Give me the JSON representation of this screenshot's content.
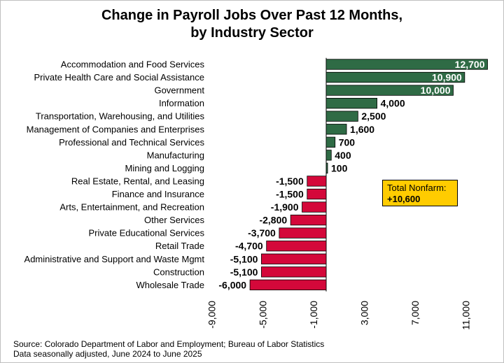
{
  "chart_data": {
    "type": "bar",
    "orientation": "horizontal",
    "title": "Change in Payroll Jobs Over Past 12 Months, by Industry Sector",
    "title_lines": [
      "Change in Payroll Jobs Over Past 12 Months,",
      "by Industry Sector"
    ],
    "categories": [
      "Accommodation and Food Services",
      "Private Health Care and Social Assistance",
      "Government",
      "Information",
      "Transportation, Warehousing, and Utilities",
      "Management of Companies and Enterprises",
      "Professional and Technical Services",
      "Manufacturing",
      "Mining and Logging",
      "Real Estate, Rental, and Leasing",
      "Finance and Insurance",
      "Arts, Entertainment, and Recreation",
      "Other Services",
      "Private Educational Services",
      "Retail Trade",
      "Administrative and Support and Waste Mgmt",
      "Construction",
      "Wholesale Trade"
    ],
    "values": [
      12700,
      10900,
      10000,
      4000,
      2500,
      1600,
      700,
      400,
      100,
      -1500,
      -1500,
      -1900,
      -2800,
      -3700,
      -4700,
      -5100,
      -5100,
      -6000
    ],
    "value_labels": [
      "12,700",
      "10,900",
      "10,000",
      "4,000",
      "2,500",
      "1,600",
      "700",
      "400",
      "100",
      "-1,500",
      "-1,500",
      "-1,900",
      "-2,800",
      "-3,700",
      "-4,700",
      "-5,100",
      "-5,100",
      "-6,000"
    ],
    "xlim": [
      -9000,
      13000
    ],
    "xticks": [
      -9000,
      -5000,
      -1000,
      3000,
      7000,
      11000
    ],
    "xtick_labels": [
      "-9,000",
      "-5,000",
      "-1,000",
      "3,000",
      "7,000",
      "11,000"
    ],
    "xlabel": "",
    "ylabel": "",
    "grid": false,
    "legend": "none",
    "colors": {
      "positive": "#2f6b45",
      "negative": "#d4083a",
      "inside_label": "#ffffff",
      "outside_label": "#000000",
      "callout_bg": "#ffcc00"
    }
  },
  "callout": {
    "label": "Total Nonfarm:",
    "value": "+10,600"
  },
  "footer": {
    "source": "Source: Colorado Department of Labor and Employment; Bureau of Labor Statistics",
    "note": "Data seasonally adjusted, June 2024 to June 2025"
  }
}
